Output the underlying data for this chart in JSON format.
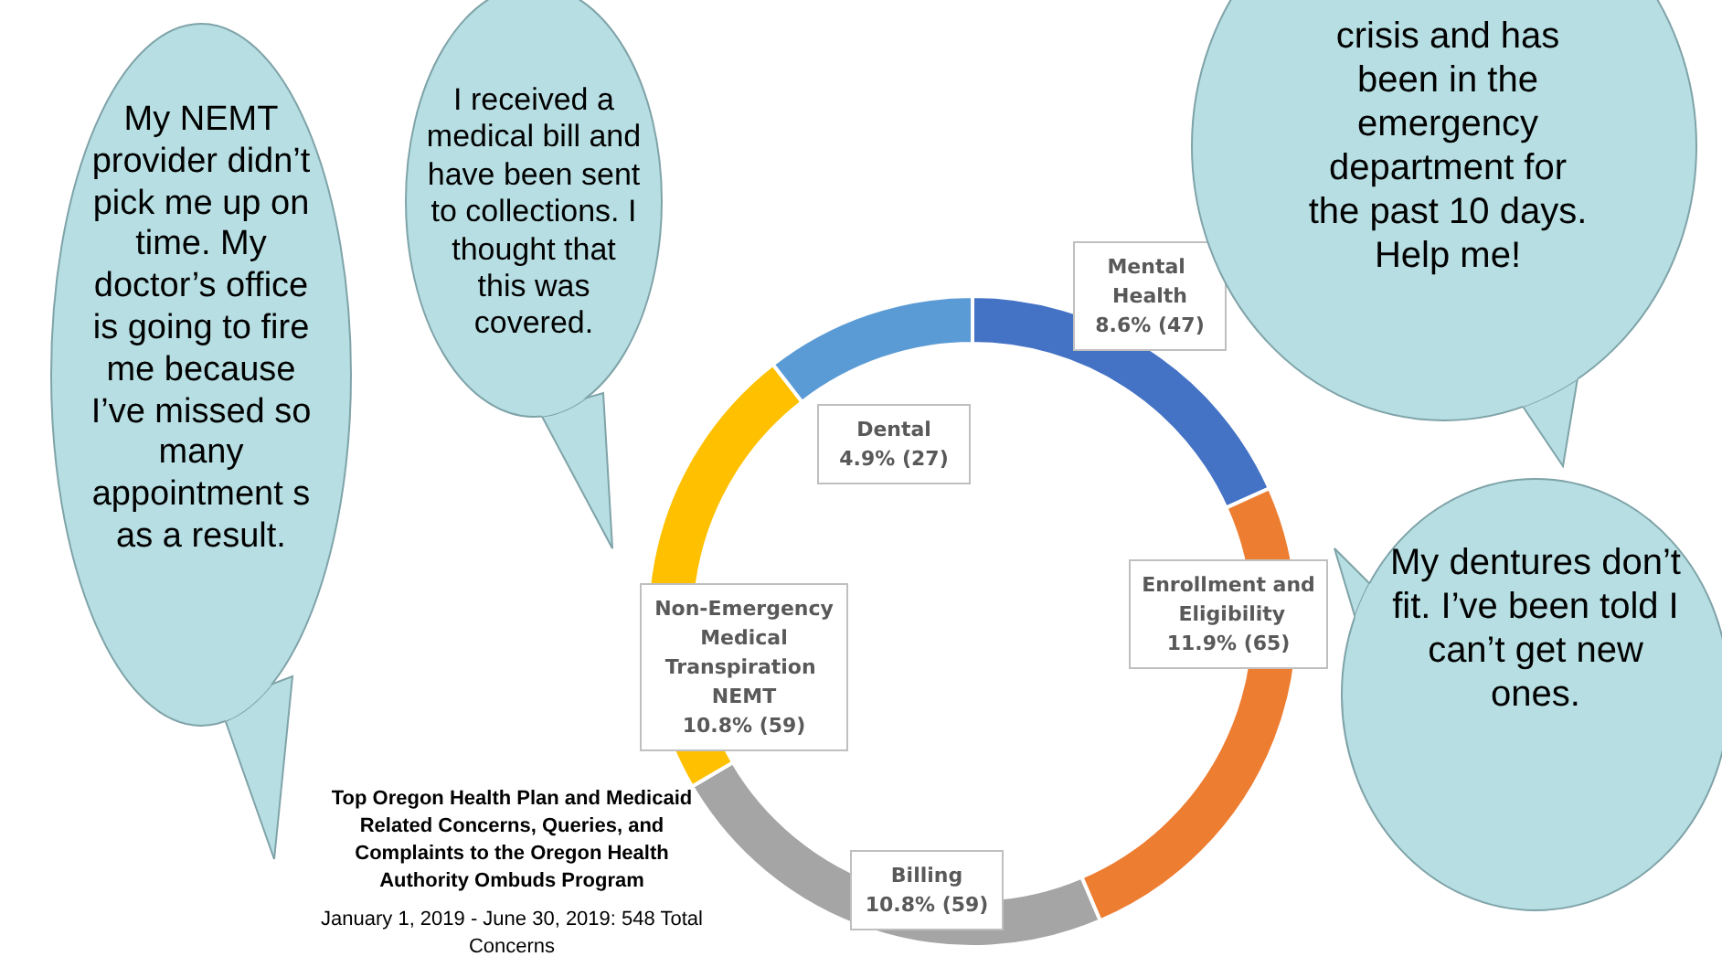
{
  "chart_data": {
    "type": "donut",
    "title": "Top Oregon Health Plan and Medicaid Related Concerns, Queries, and Complaints to the Oregon Health Authority Ombuds Program",
    "subtitle": "January 1, 2019 - June 30, 2019:  548 Total Concerns",
    "categories": [
      "Mental Health",
      "Enrollment and Eligibility",
      "Billing",
      "Non-Emergency Medical Transpiration NEMT",
      "Dental"
    ],
    "values": [
      47,
      65,
      59,
      59,
      27
    ],
    "value_labels": [
      "8.6% (47)",
      "11.9% (65)",
      "10.8% (59)",
      "10.8% (59)",
      "4.9% (27)"
    ],
    "colors": [
      "#4472c4",
      "#ed7d31",
      "#a5a5a5",
      "#ffc000",
      "#5b9bd5"
    ],
    "annotations": [
      "My NEMT provider didn’t pick me  up on time. My doctor’s office is going to fire me because I’ve missed so many appointment s as a result.",
      "I received a medical bill and have been sent to collections. I thought that this was covered.",
      "crisis and has been in the emergency department for the past 10 days. Help me!",
      "My dentures don’t fit. I’ve been told I can’t get new ones."
    ],
    "legend": false
  }
}
